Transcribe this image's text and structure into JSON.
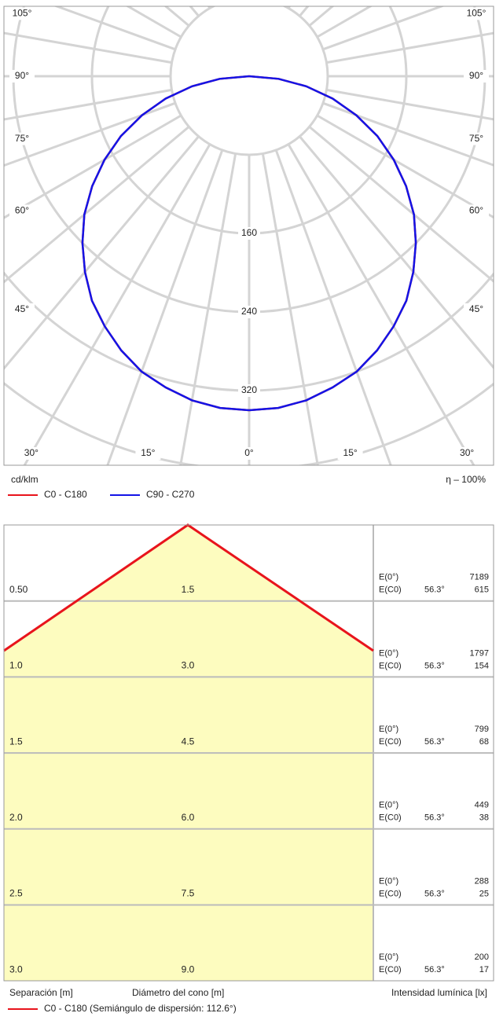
{
  "chart_data": {
    "type": "polar",
    "unit_label": "cd/klm",
    "efficiency": "η – 100%",
    "rlim": [
      0,
      400
    ],
    "rticks": [
      160,
      240,
      320
    ],
    "angle_ticks": [
      {
        "value": 0,
        "label": "0°"
      },
      {
        "value": 15,
        "label": "15°"
      },
      {
        "value": 30,
        "label": "30°"
      },
      {
        "value": 45,
        "label": "45°"
      },
      {
        "value": 60,
        "label": "60°"
      },
      {
        "value": 75,
        "label": "75°"
      },
      {
        "value": 90,
        "label": "90°"
      },
      {
        "value": 105,
        "label": "105°"
      }
    ],
    "angles": [
      0,
      5,
      10,
      15,
      20,
      25,
      30,
      35,
      40,
      45,
      50,
      55,
      60,
      65,
      70,
      75,
      80,
      85,
      90
    ],
    "series": [
      {
        "name": "C0 - C180",
        "color": "#e8141c",
        "values": [
          340,
          339,
          335,
          328,
          320,
          308,
          294,
          279,
          260,
          240,
          219,
          195,
          170,
          144,
          116,
          88,
          59,
          30,
          0
        ]
      },
      {
        "name": "C90 - C270",
        "color": "#1414e6",
        "values": [
          340,
          339,
          335,
          328,
          320,
          308,
          294,
          279,
          260,
          240,
          219,
          195,
          170,
          144,
          116,
          88,
          59,
          30,
          0
        ]
      }
    ]
  },
  "cone_table": {
    "rows": [
      {
        "height": "0.50",
        "diameter": "1.5",
        "e0_label": "E(0°)",
        "e0": 7189,
        "ec0_label": "E(C0)",
        "angle": "56.3°",
        "ec0": 615
      },
      {
        "height": "1.0",
        "diameter": "3.0",
        "e0_label": "E(0°)",
        "e0": 1797,
        "ec0_label": "E(C0)",
        "angle": "56.3°",
        "ec0": 154
      },
      {
        "height": "1.5",
        "diameter": "4.5",
        "e0_label": "E(0°)",
        "e0": 799,
        "ec0_label": "E(C0)",
        "angle": "56.3°",
        "ec0": 68
      },
      {
        "height": "2.0",
        "diameter": "6.0",
        "e0_label": "E(0°)",
        "e0": 449,
        "ec0_label": "E(C0)",
        "angle": "56.3°",
        "ec0": 38
      },
      {
        "height": "2.5",
        "diameter": "7.5",
        "e0_label": "E(0°)",
        "e0": 288,
        "ec0_label": "E(C0)",
        "angle": "56.3°",
        "ec0": 25
      },
      {
        "height": "3.0",
        "diameter": "9.0",
        "e0_label": "E(0°)",
        "e0": 200,
        "ec0_label": "E(C0)",
        "angle": "56.3°",
        "ec0": 17
      }
    ],
    "footer": {
      "separation": "Separación [m]",
      "diameter": "Diámetro del cono [m]",
      "intensity": "Intensidad lumínica [lx]"
    },
    "legend": "C0 - C180 (Semiángulo de dispersión: 112.6°)"
  }
}
